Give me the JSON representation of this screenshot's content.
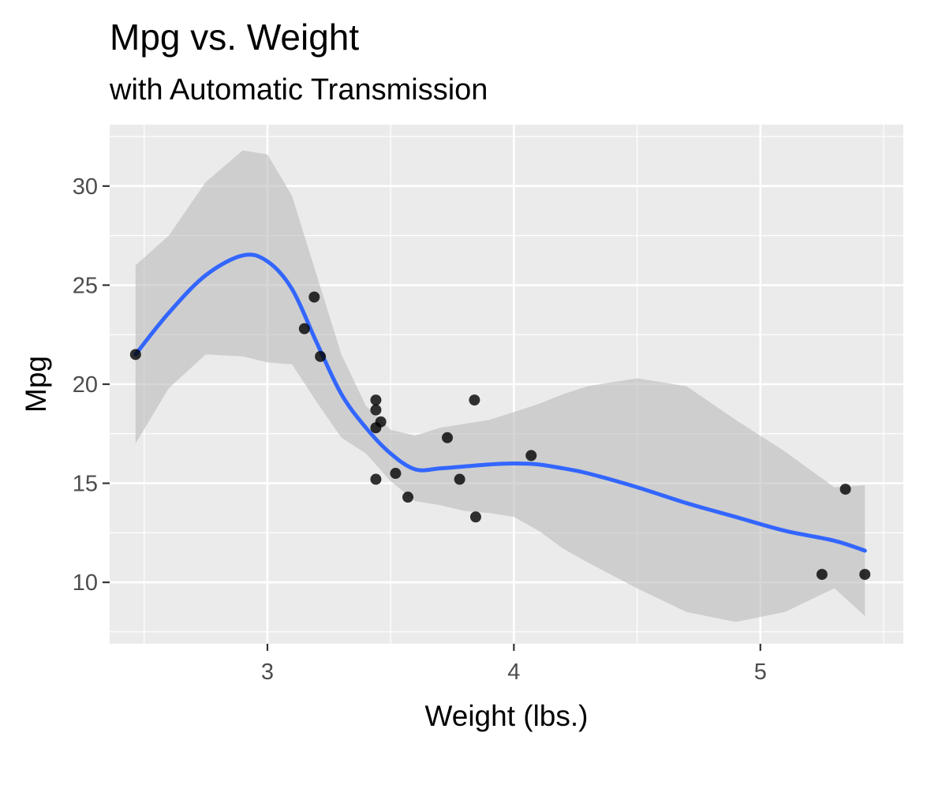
{
  "chart_data": {
    "type": "scatter",
    "title": "Mpg vs. Weight",
    "subtitle": "with Automatic Transmission",
    "xlabel": "Weight (lbs.)",
    "ylabel": "Mpg",
    "xlim": [
      2.36,
      5.58
    ],
    "ylim": [
      6.9,
      33.1
    ],
    "x_ticks": [
      3,
      4,
      5
    ],
    "y_ticks": [
      10,
      15,
      20,
      25,
      30
    ],
    "grid": true,
    "legend": "none",
    "colors": {
      "panel": "#ebebeb",
      "grid": "#ffffff",
      "points": "#000000",
      "smooth_line": "#3366ff",
      "confidence_band": "#bdbdbd"
    },
    "points": [
      {
        "x": 2.465,
        "y": 21.5
      },
      {
        "x": 3.15,
        "y": 22.8
      },
      {
        "x": 3.19,
        "y": 24.4
      },
      {
        "x": 3.215,
        "y": 21.4
      },
      {
        "x": 3.44,
        "y": 19.2
      },
      {
        "x": 3.44,
        "y": 18.7
      },
      {
        "x": 3.44,
        "y": 17.8
      },
      {
        "x": 3.44,
        "y": 15.2
      },
      {
        "x": 3.46,
        "y": 18.1
      },
      {
        "x": 3.52,
        "y": 15.5
      },
      {
        "x": 3.57,
        "y": 14.3
      },
      {
        "x": 3.73,
        "y": 17.3
      },
      {
        "x": 3.78,
        "y": 15.2
      },
      {
        "x": 3.84,
        "y": 19.2
      },
      {
        "x": 3.845,
        "y": 13.3
      },
      {
        "x": 4.07,
        "y": 16.4
      },
      {
        "x": 5.25,
        "y": 10.4
      },
      {
        "x": 5.345,
        "y": 14.7
      },
      {
        "x": 5.424,
        "y": 10.4
      }
    ],
    "smooth": {
      "x": [
        2.465,
        2.6,
        2.75,
        2.9,
        3.0,
        3.1,
        3.2,
        3.3,
        3.4,
        3.5,
        3.6,
        3.7,
        3.8,
        3.9,
        4.0,
        4.1,
        4.2,
        4.3,
        4.5,
        4.7,
        4.9,
        5.1,
        5.3,
        5.424
      ],
      "y": [
        21.5,
        23.6,
        25.5,
        26.5,
        26.2,
        24.8,
        22.1,
        19.5,
        17.8,
        16.5,
        15.7,
        15.75,
        15.85,
        15.95,
        16.0,
        15.95,
        15.75,
        15.5,
        14.8,
        14.0,
        13.3,
        12.6,
        12.1,
        11.6
      ],
      "upper": [
        26.0,
        27.5,
        30.2,
        31.8,
        31.6,
        29.5,
        25.5,
        21.5,
        18.9,
        17.7,
        17.4,
        17.8,
        18.0,
        18.2,
        18.6,
        19.0,
        19.5,
        19.9,
        20.3,
        19.9,
        18.2,
        16.6,
        14.8,
        14.9
      ],
      "lower": [
        17.0,
        19.8,
        21.5,
        21.4,
        21.1,
        21.0,
        19.1,
        17.3,
        16.5,
        15.1,
        14.1,
        13.9,
        13.6,
        13.5,
        13.3,
        12.6,
        11.7,
        11.0,
        9.7,
        8.5,
        8.0,
        8.5,
        9.7,
        8.3
      ]
    }
  }
}
